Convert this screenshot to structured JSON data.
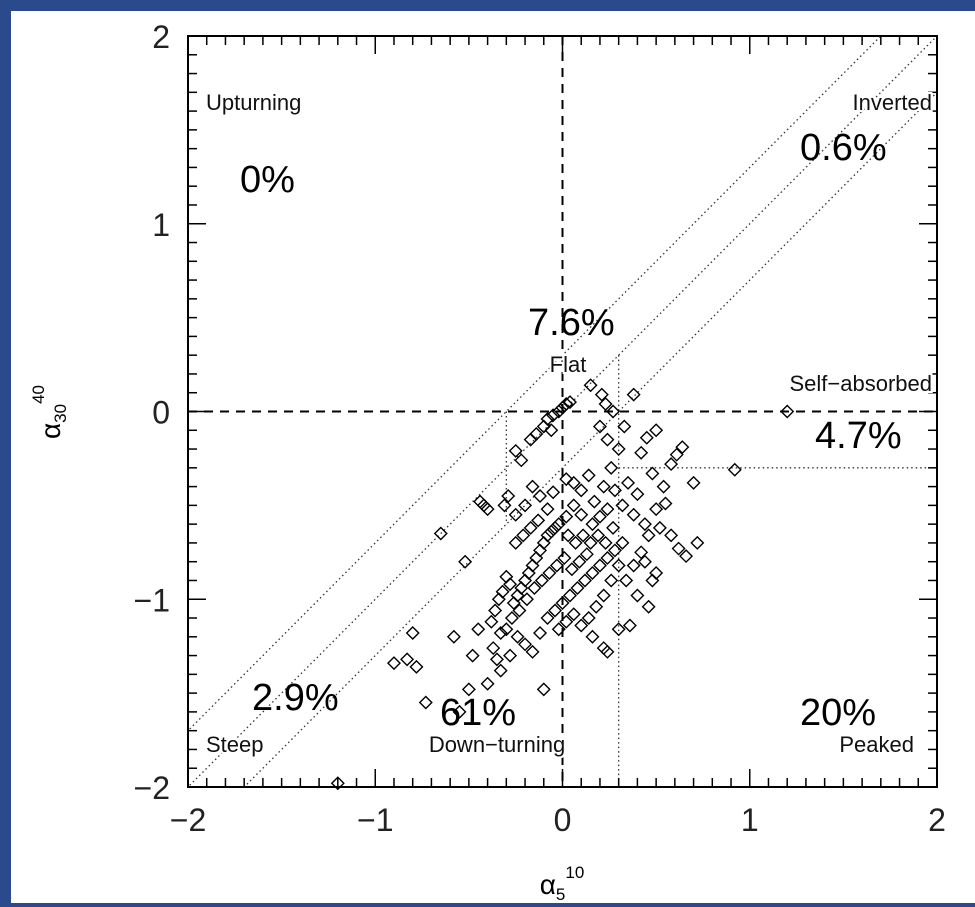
{
  "frame": {
    "border_color": "#2a4a8c",
    "bg_color": "#ffffff"
  },
  "chart_data": {
    "type": "scatter",
    "title": "",
    "xlim": [
      -2,
      2
    ],
    "ylim": [
      -2,
      2
    ],
    "x_ticks": [
      -2,
      -1,
      0,
      1,
      2
    ],
    "y_ticks": [
      -2,
      -1,
      0,
      1,
      2
    ],
    "x_tick_labels": [
      "−2",
      "−1",
      "0",
      "1",
      "2"
    ],
    "y_tick_labels": [
      "−2",
      "−1",
      "0",
      "1",
      "2"
    ],
    "xlabel": {
      "base": "α",
      "sub": "5",
      "sup": "10"
    },
    "ylabel": {
      "base": "α",
      "sub": "30",
      "sup": "40"
    },
    "regions": [
      {
        "name": "Upturning",
        "percent": "0%"
      },
      {
        "name": "Inverted",
        "percent": "0.6%"
      },
      {
        "name": "Flat",
        "percent": "7.6%"
      },
      {
        "name": "Self−absorbed",
        "percent": "4.7%"
      },
      {
        "name": "Steep",
        "percent": "2.9%"
      },
      {
        "name": "Down−turning",
        "percent": "61%"
      },
      {
        "name": "Peaked",
        "percent": "20%"
      }
    ],
    "reference_lines": {
      "dashed": [
        {
          "axis": "x",
          "value": 0
        },
        {
          "axis": "y",
          "value": 0
        }
      ],
      "diagonals_offset": [
        0.3,
        0,
        -0.3
      ],
      "dotted_segments": [
        [
          [
            -0.3,
            0
          ],
          [
            -0.3,
            -0.6
          ]
        ],
        [
          [
            0.3,
            0.3
          ],
          [
            0.3,
            -2
          ]
        ],
        [
          [
            0.3,
            -0.3
          ],
          [
            2,
            -0.3
          ]
        ]
      ]
    },
    "points": [
      [
        -1.2,
        -1.98
      ],
      [
        1.2,
        0.0
      ],
      [
        0.92,
        -0.31
      ],
      [
        0.38,
        0.09
      ],
      [
        -0.05,
        -0.02
      ],
      [
        -0.02,
        0.0
      ],
      [
        0.0,
        0.02
      ],
      [
        0.02,
        0.04
      ],
      [
        0.04,
        0.05
      ],
      [
        -0.08,
        -0.04
      ],
      [
        0.15,
        0.14
      ],
      [
        0.21,
        0.09
      ],
      [
        0.23,
        0.04
      ],
      [
        0.27,
        0.0
      ],
      [
        0.33,
        -0.08
      ],
      [
        0.3,
        -0.2
      ],
      [
        -0.1,
        -0.08
      ],
      [
        -0.14,
        -0.12
      ],
      [
        -0.17,
        -0.15
      ],
      [
        -0.06,
        -0.1
      ],
      [
        0.2,
        -0.08
      ],
      [
        0.24,
        -0.15
      ],
      [
        0.45,
        -0.14
      ],
      [
        0.5,
        -0.1
      ],
      [
        0.61,
        -0.23
      ],
      [
        0.64,
        -0.19
      ],
      [
        0.58,
        -0.28
      ],
      [
        0.48,
        -0.33
      ],
      [
        0.42,
        -0.22
      ],
      [
        0.35,
        -0.38
      ],
      [
        0.4,
        -0.44
      ],
      [
        0.32,
        -0.5
      ],
      [
        0.38,
        -0.55
      ],
      [
        0.44,
        -0.6
      ],
      [
        0.5,
        -0.52
      ],
      [
        0.55,
        -0.49
      ],
      [
        0.52,
        -0.62
      ],
      [
        0.58,
        -0.66
      ],
      [
        0.62,
        -0.73
      ],
      [
        0.66,
        -0.77
      ],
      [
        0.7,
        -0.38
      ],
      [
        0.72,
        -0.7
      ],
      [
        0.54,
        -0.4
      ],
      [
        0.46,
        -0.66
      ],
      [
        0.42,
        -0.75
      ],
      [
        -0.22,
        -0.26
      ],
      [
        -0.25,
        -0.21
      ],
      [
        -0.16,
        -0.4
      ],
      [
        -0.12,
        -0.45
      ],
      [
        -0.08,
        -0.52
      ],
      [
        -0.2,
        -0.5
      ],
      [
        -0.29,
        -0.45
      ],
      [
        -0.31,
        -0.5
      ],
      [
        -0.42,
        -0.5
      ],
      [
        -0.44,
        -0.48
      ],
      [
        -0.4,
        -0.52
      ],
      [
        -0.25,
        -0.55
      ],
      [
        -0.05,
        -0.43
      ],
      [
        0.02,
        -0.36
      ],
      [
        0.06,
        -0.38
      ],
      [
        0.1,
        -0.42
      ],
      [
        0.14,
        -0.34
      ],
      [
        0.17,
        -0.48
      ],
      [
        0.22,
        -0.4
      ],
      [
        0.26,
        -0.3
      ],
      [
        0.28,
        -0.42
      ],
      [
        0.24,
        -0.52
      ],
      [
        0.2,
        -0.56
      ],
      [
        0.16,
        -0.6
      ],
      [
        0.1,
        -0.55
      ],
      [
        0.06,
        -0.5
      ],
      [
        0.02,
        -0.56
      ],
      [
        -0.02,
        -0.6
      ],
      [
        -0.04,
        -0.62
      ],
      [
        -0.06,
        -0.64
      ],
      [
        -0.08,
        -0.66
      ],
      [
        -0.1,
        -0.7
      ],
      [
        -0.12,
        -0.74
      ],
      [
        -0.14,
        -0.78
      ],
      [
        -0.16,
        -0.82
      ],
      [
        -0.18,
        -0.86
      ],
      [
        -0.2,
        -0.9
      ],
      [
        -0.22,
        -0.94
      ],
      [
        -0.24,
        -0.98
      ],
      [
        -0.26,
        -1.02
      ],
      [
        -0.28,
        -0.92
      ],
      [
        -0.3,
        -0.88
      ],
      [
        -0.32,
        -0.96
      ],
      [
        -0.34,
        -1.0
      ],
      [
        -0.36,
        -1.06
      ],
      [
        -0.38,
        -1.12
      ],
      [
        -0.3,
        -1.16
      ],
      [
        -0.24,
        -1.2
      ],
      [
        -0.2,
        -1.24
      ],
      [
        -0.16,
        -1.28
      ],
      [
        -0.12,
        -1.18
      ],
      [
        -0.08,
        -1.1
      ],
      [
        -0.04,
        -1.06
      ],
      [
        0.0,
        -1.02
      ],
      [
        0.04,
        -0.98
      ],
      [
        0.08,
        -0.94
      ],
      [
        0.12,
        -0.9
      ],
      [
        0.16,
        -0.86
      ],
      [
        0.2,
        -0.82
      ],
      [
        0.24,
        -0.78
      ],
      [
        0.28,
        -0.74
      ],
      [
        0.32,
        -0.7
      ],
      [
        0.3,
        -0.82
      ],
      [
        0.26,
        -0.9
      ],
      [
        0.22,
        -0.98
      ],
      [
        0.18,
        -1.04
      ],
      [
        0.14,
        -1.1
      ],
      [
        0.1,
        -1.14
      ],
      [
        0.06,
        -1.08
      ],
      [
        0.02,
        -1.12
      ],
      [
        -0.02,
        -1.16
      ],
      [
        0.16,
        -1.2
      ],
      [
        0.22,
        -1.26
      ],
      [
        0.24,
        -1.28
      ],
      [
        0.3,
        -1.16
      ],
      [
        0.36,
        -1.14
      ],
      [
        0.34,
        -0.9
      ],
      [
        0.38,
        -0.82
      ],
      [
        0.44,
        -0.8
      ],
      [
        0.48,
        -0.9
      ],
      [
        0.4,
        -0.98
      ],
      [
        0.46,
        -1.04
      ],
      [
        0.5,
        -0.86
      ],
      [
        0.07,
        -0.7
      ],
      [
        0.11,
        -0.66
      ],
      [
        0.15,
        -0.7
      ],
      [
        0.19,
        -0.66
      ],
      [
        0.23,
        -0.7
      ],
      [
        0.27,
        -0.62
      ],
      [
        0.03,
        -0.66
      ],
      [
        -0.13,
        -0.58
      ],
      [
        -0.17,
        -0.62
      ],
      [
        -0.21,
        -0.66
      ],
      [
        -0.25,
        -0.7
      ],
      [
        -0.11,
        -0.9
      ],
      [
        -0.07,
        -0.86
      ],
      [
        -0.03,
        -0.82
      ],
      [
        0.01,
        -0.78
      ],
      [
        0.05,
        -0.84
      ],
      [
        0.09,
        -0.8
      ],
      [
        0.13,
        -0.76
      ],
      [
        -0.15,
        -0.94
      ],
      [
        -0.19,
        -1.0
      ],
      [
        -0.23,
        -1.06
      ],
      [
        -0.27,
        -1.1
      ],
      [
        -0.33,
        -1.18
      ],
      [
        -0.37,
        -1.26
      ],
      [
        -0.35,
        -1.32
      ],
      [
        -0.33,
        -1.38
      ],
      [
        -0.28,
        -1.3
      ],
      [
        -0.4,
        -1.45
      ],
      [
        -0.1,
        -1.48
      ],
      [
        -0.5,
        -1.48
      ],
      [
        -0.52,
        -0.8
      ],
      [
        -0.65,
        -0.65
      ],
      [
        -0.8,
        -1.18
      ],
      [
        -0.83,
        -1.32
      ],
      [
        -0.78,
        -1.36
      ],
      [
        -0.9,
        -1.34
      ],
      [
        -0.73,
        -1.55
      ],
      [
        -0.55,
        -1.6
      ],
      [
        -0.58,
        -1.2
      ],
      [
        -0.48,
        -1.3
      ],
      [
        -0.45,
        -1.16
      ]
    ]
  }
}
